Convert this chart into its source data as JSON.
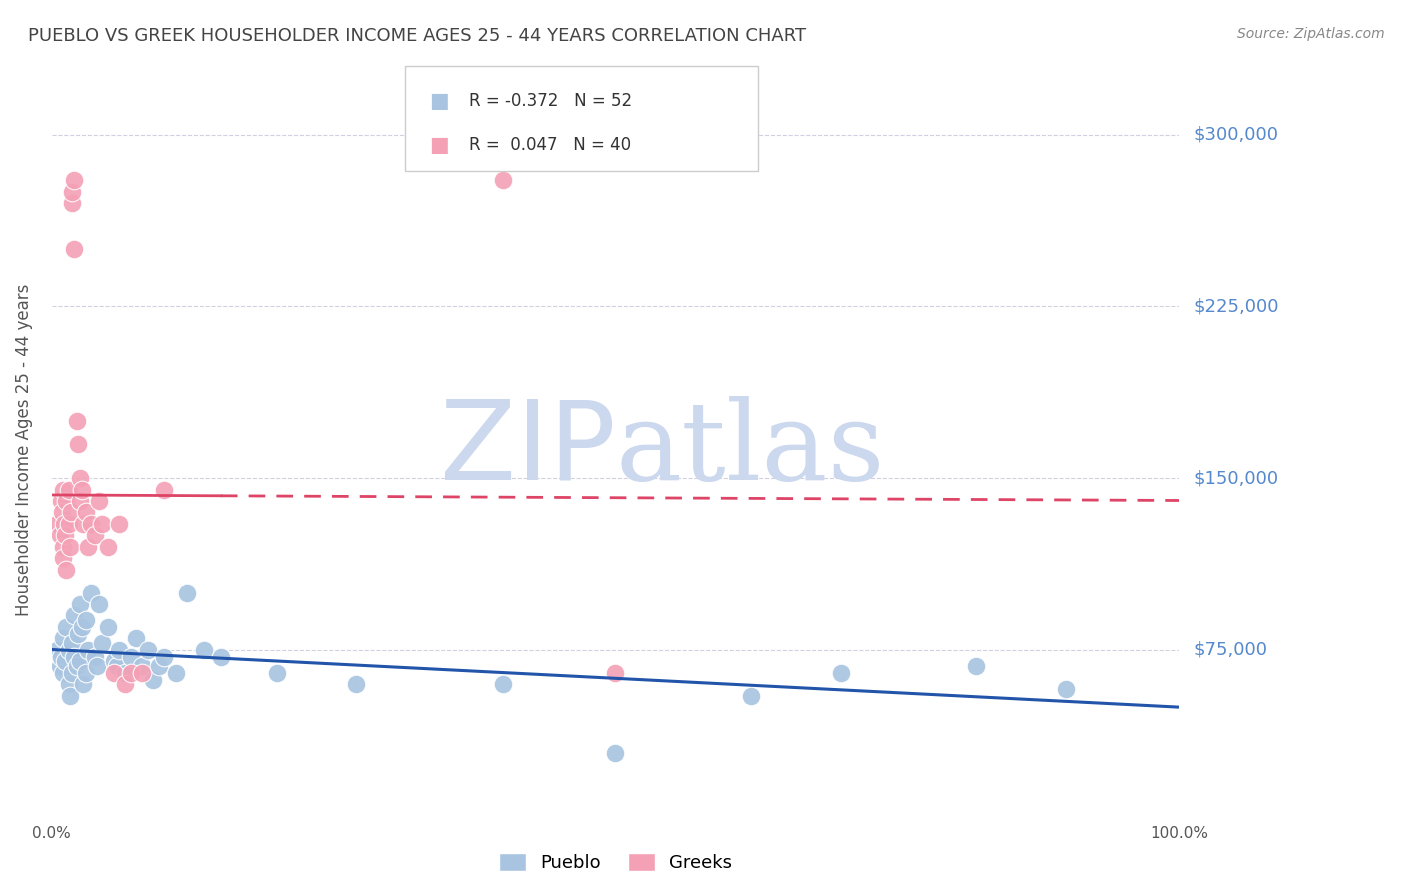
{
  "title": "PUEBLO VS GREEK HOUSEHOLDER INCOME AGES 25 - 44 YEARS CORRELATION CHART",
  "source": "Source: ZipAtlas.com",
  "ylabel": "Householder Income Ages 25 - 44 years",
  "xlim": [
    0,
    1.0
  ],
  "ylim": [
    0,
    325000
  ],
  "pueblo_R": -0.372,
  "pueblo_N": 52,
  "greek_R": 0.047,
  "greek_N": 40,
  "pueblo_color": "#a8c4e0",
  "greek_color": "#f4a0b5",
  "trend_pueblo_color": "#2255aa",
  "trend_greek_color": "#dd4466",
  "watermark_zip": "ZIP",
  "watermark_atlas": "atlas",
  "watermark_color": "#ccd8ee",
  "title_color": "#444444",
  "source_color": "#888888",
  "yaxis_label_color": "#5588cc",
  "grid_color": "#d0d0e0",
  "background_color": "#ffffff",
  "legend_border_color": "#cccccc",
  "pueblo_x": [
    0.005,
    0.007,
    0.008,
    0.01,
    0.01,
    0.012,
    0.013,
    0.015,
    0.015,
    0.016,
    0.018,
    0.018,
    0.02,
    0.02,
    0.022,
    0.023,
    0.025,
    0.025,
    0.027,
    0.028,
    0.03,
    0.03,
    0.032,
    0.035,
    0.038,
    0.04,
    0.042,
    0.045,
    0.05,
    0.055,
    0.058,
    0.06,
    0.065,
    0.07,
    0.075,
    0.08,
    0.085,
    0.09,
    0.095,
    0.1,
    0.11,
    0.12,
    0.135,
    0.15,
    0.2,
    0.27,
    0.4,
    0.5,
    0.62,
    0.7,
    0.82,
    0.9
  ],
  "pueblo_y": [
    75000,
    68000,
    72000,
    65000,
    80000,
    70000,
    85000,
    75000,
    60000,
    55000,
    78000,
    65000,
    90000,
    72000,
    68000,
    82000,
    95000,
    70000,
    85000,
    60000,
    88000,
    65000,
    75000,
    100000,
    72000,
    68000,
    95000,
    78000,
    85000,
    70000,
    68000,
    75000,
    65000,
    72000,
    80000,
    68000,
    75000,
    62000,
    68000,
    72000,
    65000,
    100000,
    75000,
    72000,
    65000,
    60000,
    60000,
    30000,
    55000,
    65000,
    68000,
    58000
  ],
  "greek_x": [
    0.005,
    0.007,
    0.008,
    0.009,
    0.01,
    0.01,
    0.01,
    0.011,
    0.012,
    0.013,
    0.013,
    0.015,
    0.015,
    0.016,
    0.017,
    0.018,
    0.018,
    0.02,
    0.02,
    0.022,
    0.023,
    0.025,
    0.025,
    0.027,
    0.028,
    0.03,
    0.032,
    0.035,
    0.038,
    0.042,
    0.045,
    0.05,
    0.055,
    0.06,
    0.065,
    0.07,
    0.08,
    0.1,
    0.4,
    0.5
  ],
  "greek_y": [
    130000,
    125000,
    140000,
    135000,
    145000,
    120000,
    115000,
    130000,
    125000,
    140000,
    110000,
    145000,
    130000,
    120000,
    135000,
    270000,
    275000,
    280000,
    250000,
    175000,
    165000,
    150000,
    140000,
    145000,
    130000,
    135000,
    120000,
    130000,
    125000,
    140000,
    130000,
    120000,
    65000,
    130000,
    60000,
    65000,
    65000,
    145000,
    280000,
    65000
  ]
}
